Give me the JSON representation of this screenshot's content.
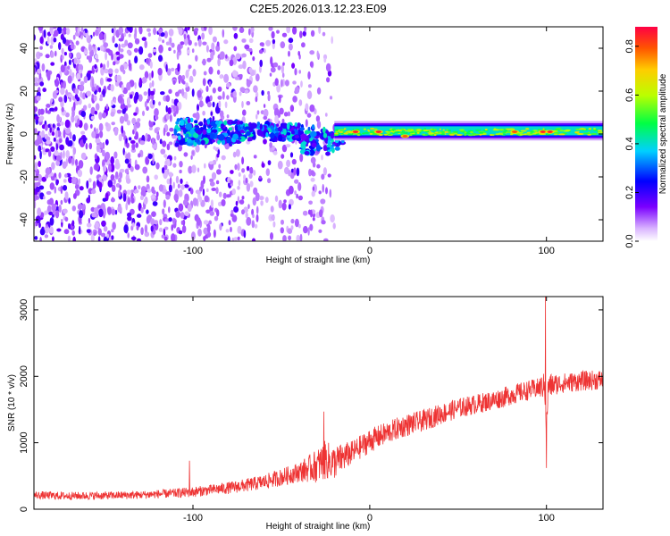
{
  "figure": {
    "title": "C2E5.2026.013.12.23.E09"
  },
  "chart_data": [
    {
      "type": "heatmap",
      "title": "C2E5.2026.013.12.23.E09",
      "xlabel": "Height of straight line (km)",
      "ylabel": "Frequency (Hz)",
      "xlim": [
        -190,
        132
      ],
      "ylim": [
        -50,
        50
      ],
      "xticks": [
        -100,
        0,
        100
      ],
      "yticks": [
        -40,
        -20,
        0,
        20,
        40
      ],
      "grid": false,
      "colorbar": {
        "label": "Normalized spectral amplitude",
        "range": [
          0.0,
          0.88
        ],
        "ticks": [
          0.0,
          0.2,
          0.4,
          0.6,
          0.8
        ],
        "colormap": "rainbow (violet to red)"
      },
      "features": [
        {
          "x_range": [
            -190,
            -20
          ],
          "freq_range": [
            -50,
            50
          ],
          "amplitude": 0.1,
          "pattern": "scattered speckle"
        },
        {
          "x_range": [
            -110,
            -15
          ],
          "freq_range": [
            -15,
            8
          ],
          "amplitude": 0.35,
          "pattern": "clustered band"
        },
        {
          "x_range": [
            -20,
            132
          ],
          "freq_range": [
            -1,
            4
          ],
          "amplitude": 0.4,
          "pattern": "continuous narrow band"
        },
        {
          "x": -8,
          "freq": 1,
          "amplitude": 0.85
        },
        {
          "x": 5,
          "freq": 1,
          "amplitude": 0.85
        },
        {
          "x": 20,
          "freq": -1,
          "amplitude": 0.8
        },
        {
          "x": 82,
          "freq": 1,
          "amplitude": 0.8
        },
        {
          "x": 98,
          "freq": 1,
          "amplitude": 0.85
        },
        {
          "x": 102,
          "freq": 1,
          "amplitude": 0.85
        }
      ]
    },
    {
      "type": "line",
      "xlabel": "Height of straight line (km)",
      "ylabel": "SNR (10 * v/v)",
      "xlim": [
        -190,
        132
      ],
      "ylim": [
        0,
        3200
      ],
      "xticks": [
        -100,
        0,
        100
      ],
      "yticks": [
        0,
        1000,
        2000,
        3000
      ],
      "grid": false,
      "series": [
        {
          "color": "#ee3333",
          "x": [
            -190,
            -170,
            -150,
            -130,
            -110,
            -100,
            -90,
            -80,
            -70,
            -60,
            -50,
            -40,
            -30,
            -25,
            -20,
            -15,
            -10,
            0,
            10,
            20,
            30,
            40,
            50,
            60,
            70,
            80,
            90,
            95,
            99,
            100,
            101,
            105,
            110,
            120,
            132
          ],
          "y": [
            210,
            200,
            205,
            215,
            240,
            260,
            290,
            320,
            360,
            410,
            480,
            560,
            650,
            740,
            700,
            780,
            850,
            1030,
            1150,
            1260,
            1330,
            1430,
            1520,
            1580,
            1640,
            1720,
            1790,
            1820,
            1860,
            1200,
            1850,
            1880,
            1900,
            1930,
            1950
          ],
          "band": [
            60,
            60,
            60,
            60,
            70,
            80,
            80,
            90,
            100,
            110,
            130,
            150,
            250,
            300,
            250,
            220,
            180,
            180,
            170,
            170,
            160,
            160,
            150,
            150,
            150,
            150,
            150,
            150,
            200,
            200,
            200,
            160,
            150,
            150,
            150
          ],
          "spikes": [
            {
              "x": -26,
              "y": 1470
            },
            {
              "x": -102,
              "y": 730
            },
            {
              "x": 99.5,
              "y": 3200
            },
            {
              "x": 100,
              "y": 620
            }
          ]
        }
      ]
    }
  ]
}
